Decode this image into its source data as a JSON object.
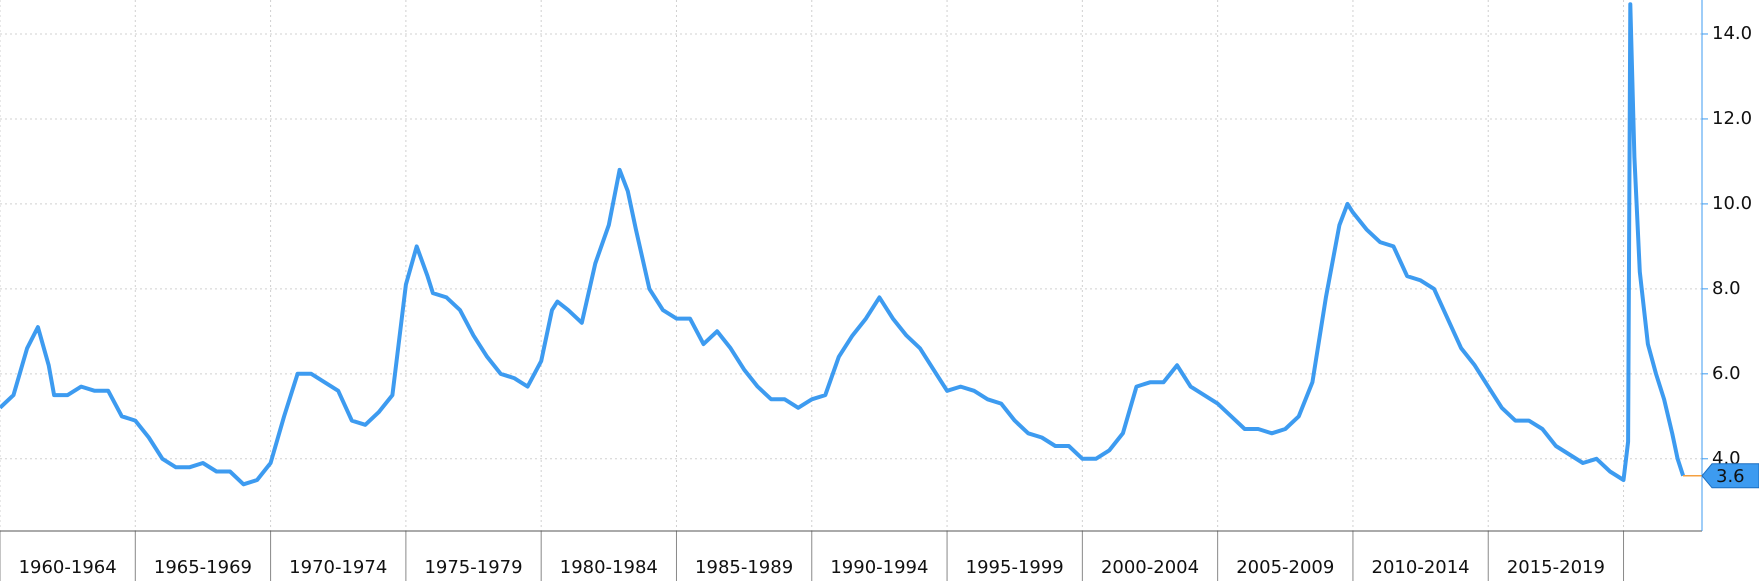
{
  "chart_data": {
    "type": "line",
    "x": [
      1960.0,
      1960.5,
      1961.0,
      1961.4,
      1961.8,
      1962.0,
      1962.5,
      1963.0,
      1963.5,
      1964.0,
      1964.5,
      1965.0,
      1965.5,
      1966.0,
      1966.5,
      1967.0,
      1967.5,
      1968.0,
      1968.5,
      1969.0,
      1969.5,
      1970.0,
      1970.5,
      1971.0,
      1971.5,
      1972.0,
      1972.5,
      1973.0,
      1973.5,
      1974.0,
      1974.5,
      1975.0,
      1975.4,
      1975.8,
      1976.0,
      1976.5,
      1977.0,
      1977.5,
      1978.0,
      1978.5,
      1979.0,
      1979.5,
      1980.0,
      1980.4,
      1980.6,
      1981.0,
      1981.5,
      1982.0,
      1982.5,
      1982.9,
      1983.2,
      1983.5,
      1984.0,
      1984.5,
      1985.0,
      1985.5,
      1986.0,
      1986.5,
      1987.0,
      1987.5,
      1988.0,
      1988.5,
      1989.0,
      1989.5,
      1990.0,
      1990.5,
      1991.0,
      1991.5,
      1992.0,
      1992.5,
      1993.0,
      1993.5,
      1994.0,
      1994.5,
      1995.0,
      1995.5,
      1996.0,
      1996.5,
      1997.0,
      1997.5,
      1998.0,
      1998.5,
      1999.0,
      1999.5,
      2000.0,
      2000.5,
      2001.0,
      2001.5,
      2002.0,
      2002.5,
      2003.0,
      2003.5,
      2004.0,
      2004.5,
      2005.0,
      2005.5,
      2006.0,
      2006.5,
      2007.0,
      2007.5,
      2008.0,
      2008.5,
      2009.0,
      2009.5,
      2009.8,
      2010.0,
      2010.5,
      2011.0,
      2011.5,
      2012.0,
      2012.5,
      2013.0,
      2013.5,
      2014.0,
      2014.5,
      2015.0,
      2015.5,
      2016.0,
      2016.5,
      2017.0,
      2017.5,
      2018.0,
      2018.5,
      2019.0,
      2019.5,
      2020.0,
      2020.17,
      2020.25,
      2020.4,
      2020.6,
      2020.9,
      2021.2,
      2021.5,
      2021.8,
      2022.0,
      2022.2
    ],
    "series": [
      {
        "color": "#3d9bf0",
        "values": [
          5.2,
          5.5,
          6.6,
          7.1,
          6.2,
          5.5,
          5.5,
          5.7,
          5.6,
          5.6,
          5.0,
          4.9,
          4.5,
          4.0,
          3.8,
          3.8,
          3.9,
          3.7,
          3.7,
          3.4,
          3.5,
          3.9,
          5.0,
          6.0,
          6.0,
          5.8,
          5.6,
          4.9,
          4.8,
          5.1,
          5.5,
          8.1,
          9.0,
          8.3,
          7.9,
          7.8,
          7.5,
          6.9,
          6.4,
          6.0,
          5.9,
          5.7,
          6.3,
          7.5,
          7.7,
          7.5,
          7.2,
          8.6,
          9.5,
          10.8,
          10.3,
          9.4,
          8.0,
          7.5,
          7.3,
          7.3,
          6.7,
          7.0,
          6.6,
          6.1,
          5.7,
          5.4,
          5.4,
          5.2,
          5.4,
          5.5,
          6.4,
          6.9,
          7.3,
          7.8,
          7.3,
          6.9,
          6.6,
          6.1,
          5.6,
          5.7,
          5.6,
          5.4,
          5.3,
          4.9,
          4.6,
          4.5,
          4.3,
          4.3,
          4.0,
          4.0,
          4.2,
          4.6,
          5.7,
          5.8,
          5.8,
          6.2,
          5.7,
          5.5,
          5.3,
          5.0,
          4.7,
          4.7,
          4.6,
          4.7,
          5.0,
          5.8,
          7.8,
          9.5,
          10.0,
          9.8,
          9.4,
          9.1,
          9.0,
          8.3,
          8.2,
          8.0,
          7.3,
          6.6,
          6.2,
          5.7,
          5.2,
          4.9,
          4.9,
          4.7,
          4.3,
          4.1,
          3.9,
          4.0,
          3.7,
          3.5,
          4.4,
          14.7,
          11.1,
          8.4,
          6.7,
          6.0,
          5.4,
          4.6,
          4.0,
          3.6
        ]
      }
    ],
    "xlim": [
      1960,
      2022.9
    ],
    "xticks": [
      {
        "value": 1960,
        "label": "1960-1964"
      },
      {
        "value": 1965,
        "label": "1965-1969"
      },
      {
        "value": 1970,
        "label": "1970-1974"
      },
      {
        "value": 1975,
        "label": "1975-1979"
      },
      {
        "value": 1980,
        "label": "1980-1984"
      },
      {
        "value": 1985,
        "label": "1985-1989"
      },
      {
        "value": 1990,
        "label": "1990-1994"
      },
      {
        "value": 1995,
        "label": "1995-1999"
      },
      {
        "value": 2000,
        "label": "2000-2004"
      },
      {
        "value": 2005,
        "label": "2005-2009"
      },
      {
        "value": 2010,
        "label": "2010-2014"
      },
      {
        "value": 2015,
        "label": "2015-2019"
      },
      {
        "value": 2020,
        "label": null
      }
    ],
    "ylim": [
      2.3,
      14.8
    ],
    "yticks": [
      {
        "value": 4,
        "label": "4.0"
      },
      {
        "value": 6,
        "label": "6.0"
      },
      {
        "value": 8,
        "label": "8.0"
      },
      {
        "value": 10,
        "label": "10.0"
      },
      {
        "value": 12,
        "label": "12.0"
      },
      {
        "value": 14,
        "label": "14.0"
      }
    ],
    "grid": true,
    "last_value_color": "#f5a040"
  }
}
